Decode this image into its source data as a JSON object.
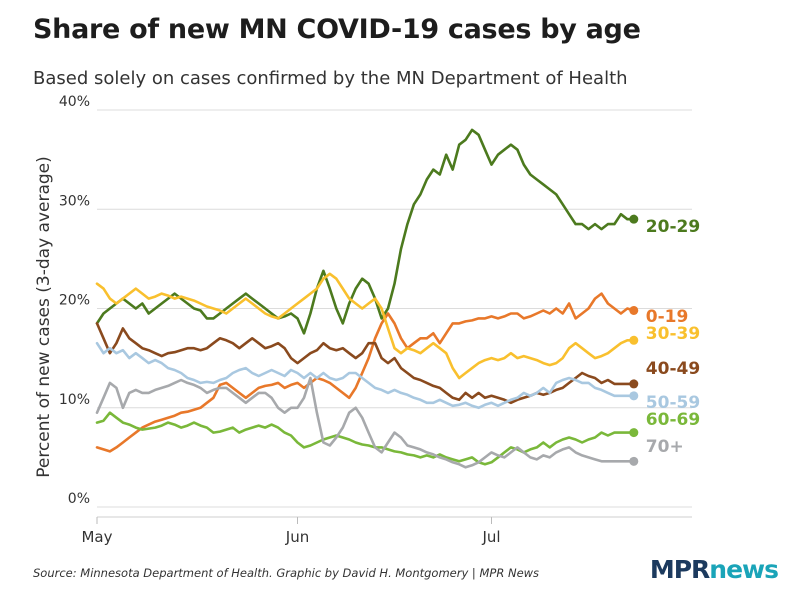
{
  "header": {
    "title": "Share of new MN COVID-19 cases by age",
    "subtitle": "Based solely on cases confirmed by the MN Department of Health"
  },
  "footer": {
    "source": "Source: Minnesota Department of Health. Graphic by David H. Montgomery | MPR News",
    "logo_mpr": "MPR",
    "logo_news": "news"
  },
  "chart_data": {
    "type": "line",
    "ylabel": "Percent of new cases (3-day average)",
    "ylim": [
      0,
      40
    ],
    "yticks": [
      0,
      10,
      20,
      30,
      40
    ],
    "ytick_labels": [
      "0%",
      "10%",
      "20%",
      "30%",
      "40%"
    ],
    "xlim": [
      0,
      92
    ],
    "xticks": [
      0,
      31,
      61
    ],
    "xtick_labels": [
      "May",
      "Jun",
      "Jul"
    ],
    "grid": "horizontal",
    "legend": "direct labels at line ends",
    "x": [
      0,
      1,
      2,
      3,
      4,
      5,
      6,
      7,
      8,
      9,
      10,
      11,
      12,
      13,
      14,
      15,
      16,
      17,
      18,
      19,
      20,
      21,
      22,
      23,
      24,
      25,
      26,
      27,
      28,
      29,
      30,
      31,
      32,
      33,
      34,
      35,
      36,
      37,
      38,
      39,
      40,
      41,
      42,
      43,
      44,
      45,
      46,
      47,
      48,
      49,
      50,
      51,
      52,
      53,
      54,
      55,
      56,
      57,
      58,
      59,
      60,
      61,
      62,
      63,
      64,
      65,
      66,
      67,
      68,
      69,
      70,
      71,
      72,
      73,
      74,
      75,
      76,
      77,
      78,
      79,
      80,
      81,
      82,
      83,
      84,
      85,
      86,
      87,
      88,
      89,
      90,
      91,
      92
    ],
    "series": [
      {
        "name": "20-29",
        "color": "#4c7a1e",
        "label_value": 29.0,
        "values": [
          18.5,
          19.5,
          20.0,
          20.5,
          21.0,
          20.5,
          20.0,
          20.5,
          19.5,
          20.0,
          20.5,
          21.0,
          21.5,
          21.0,
          20.5,
          20.0,
          19.8,
          19.0,
          19.0,
          19.5,
          20.0,
          20.5,
          21.0,
          21.5,
          21.0,
          20.5,
          20.0,
          19.5,
          19.0,
          19.2,
          19.5,
          19.0,
          17.5,
          19.5,
          22.0,
          23.8,
          22.0,
          20.0,
          18.5,
          20.5,
          22.0,
          23.0,
          22.5,
          21.0,
          19.0,
          20.0,
          22.5,
          26.0,
          28.5,
          30.5,
          31.5,
          33.0,
          34.0,
          33.5,
          35.5,
          34.0,
          36.5,
          37.0,
          38.0,
          37.5,
          36.0,
          34.5,
          35.5,
          36.0,
          36.5,
          36.0,
          34.5,
          33.5,
          33.0,
          32.5,
          32.0,
          31.5,
          30.5,
          29.5,
          28.5,
          28.5,
          28.0,
          28.5,
          28.0,
          28.5,
          28.5,
          29.5,
          29.0,
          29.0,
          29.0,
          29.0,
          29.0,
          29.0,
          29.0,
          29.0,
          29.0,
          29.0,
          29.0
        ]
      },
      {
        "name": "0-19",
        "color": "#e8782a",
        "label_value": 19.0,
        "values": [
          6.0,
          5.8,
          5.6,
          6.0,
          6.5,
          7.0,
          7.5,
          8.0,
          8.3,
          8.6,
          8.8,
          9.0,
          9.2,
          9.5,
          9.6,
          9.8,
          10.0,
          10.5,
          11.0,
          12.3,
          12.5,
          12.0,
          11.5,
          11.0,
          11.5,
          12.0,
          12.2,
          12.3,
          12.5,
          12.0,
          12.3,
          12.5,
          12.0,
          12.5,
          13.0,
          12.8,
          12.5,
          12.0,
          11.5,
          11.0,
          12.0,
          13.5,
          15.0,
          17.0,
          18.5,
          19.5,
          18.5,
          17.0,
          16.0,
          16.5,
          17.0,
          17.0,
          17.5,
          16.5,
          17.5,
          18.5,
          18.5,
          18.7,
          18.8,
          19.0,
          19.0,
          19.2,
          19.0,
          19.2,
          19.5,
          19.5,
          19.0,
          19.2,
          19.5,
          19.8,
          19.5,
          20.0,
          19.5,
          20.5,
          19.0,
          19.5,
          20.0,
          21.0,
          21.5,
          20.5,
          20.0,
          19.5,
          20.0,
          19.8,
          19.5,
          19.6,
          19.5,
          19.3,
          19.0,
          19.0,
          19.0,
          19.0,
          19.0
        ]
      },
      {
        "name": "30-39",
        "color": "#f9c02e",
        "label_value": 16.8,
        "values": [
          22.5,
          22.0,
          21.0,
          20.5,
          21.0,
          21.5,
          22.0,
          21.5,
          21.0,
          21.2,
          21.5,
          21.3,
          21.0,
          21.2,
          21.0,
          20.8,
          20.5,
          20.2,
          20.0,
          19.8,
          19.5,
          20.0,
          20.5,
          21.0,
          20.5,
          20.0,
          19.5,
          19.2,
          19.0,
          19.5,
          20.0,
          20.5,
          21.0,
          21.5,
          22.0,
          23.0,
          23.5,
          23.0,
          22.0,
          21.0,
          20.5,
          20.0,
          20.5,
          21.0,
          20.0,
          18.0,
          16.0,
          15.5,
          16.0,
          15.8,
          15.5,
          16.0,
          16.5,
          16.0,
          15.5,
          14.0,
          13.0,
          13.5,
          14.0,
          14.5,
          14.8,
          15.0,
          14.8,
          15.0,
          15.5,
          15.0,
          15.2,
          15.0,
          14.8,
          14.5,
          14.3,
          14.5,
          15.0,
          16.0,
          16.5,
          16.0,
          15.5,
          15.0,
          15.2,
          15.5,
          16.0,
          16.5,
          16.8,
          16.8,
          16.8,
          16.8,
          16.8,
          16.8,
          16.8,
          16.8,
          16.8,
          16.8,
          16.8
        ]
      },
      {
        "name": "40-49",
        "color": "#8a4a1e",
        "label_value": 12.4,
        "values": [
          18.5,
          17.0,
          15.5,
          16.5,
          18.0,
          17.0,
          16.5,
          16.0,
          15.8,
          15.5,
          15.2,
          15.5,
          15.6,
          15.8,
          16.0,
          16.0,
          15.8,
          16.0,
          16.5,
          17.0,
          16.8,
          16.5,
          16.0,
          16.5,
          17.0,
          16.5,
          16.0,
          16.2,
          16.5,
          16.0,
          15.0,
          14.5,
          15.0,
          15.5,
          15.8,
          16.5,
          16.0,
          15.8,
          16.0,
          15.5,
          15.0,
          15.5,
          16.5,
          16.5,
          15.0,
          14.5,
          15.0,
          14.0,
          13.5,
          13.0,
          12.8,
          12.5,
          12.2,
          12.0,
          11.5,
          11.0,
          10.8,
          11.5,
          11.0,
          11.5,
          11.0,
          11.2,
          11.0,
          10.8,
          10.5,
          10.8,
          11.0,
          11.2,
          11.5,
          11.3,
          11.5,
          11.8,
          12.0,
          12.5,
          13.0,
          13.5,
          13.2,
          13.0,
          12.5,
          12.8,
          12.4,
          12.4,
          12.4,
          12.4,
          12.4,
          12.4,
          12.4,
          12.4,
          12.4,
          12.4,
          12.4,
          12.4,
          12.4
        ]
      },
      {
        "name": "50-59",
        "color": "#a9c8e0",
        "label_value": 11.2,
        "values": [
          16.5,
          15.5,
          16.0,
          15.5,
          15.8,
          15.0,
          15.5,
          15.0,
          14.5,
          14.8,
          14.5,
          14.0,
          13.8,
          13.5,
          13.0,
          12.8,
          12.5,
          12.6,
          12.5,
          12.8,
          13.0,
          13.5,
          13.8,
          14.0,
          13.5,
          13.2,
          13.5,
          13.8,
          13.5,
          13.2,
          13.8,
          13.5,
          13.0,
          13.5,
          13.0,
          13.5,
          13.0,
          12.8,
          13.0,
          13.5,
          13.5,
          13.0,
          12.5,
          12.0,
          11.8,
          11.5,
          11.8,
          11.5,
          11.3,
          11.0,
          10.8,
          10.5,
          10.5,
          10.8,
          10.5,
          10.2,
          10.3,
          10.5,
          10.2,
          10.0,
          10.3,
          10.5,
          10.2,
          10.5,
          10.8,
          11.0,
          11.5,
          11.2,
          11.5,
          12.0,
          11.5,
          12.5,
          12.8,
          13.0,
          12.8,
          12.5,
          12.5,
          12.0,
          11.8,
          11.5,
          11.2,
          11.2,
          11.2,
          11.2,
          11.2,
          11.2,
          11.2,
          11.2,
          11.2,
          11.2,
          11.2,
          11.2,
          11.2
        ]
      },
      {
        "name": "60-69",
        "color": "#7ab83a",
        "label_value": 7.5,
        "values": [
          8.5,
          8.7,
          9.5,
          9.0,
          8.5,
          8.3,
          8.0,
          7.8,
          7.9,
          8.0,
          8.2,
          8.5,
          8.3,
          8.0,
          8.2,
          8.5,
          8.2,
          8.0,
          7.5,
          7.6,
          7.8,
          8.0,
          7.5,
          7.8,
          8.0,
          8.2,
          8.0,
          8.3,
          8.0,
          7.5,
          7.2,
          6.5,
          6.0,
          6.2,
          6.5,
          6.8,
          7.0,
          7.2,
          7.0,
          6.8,
          6.5,
          6.3,
          6.2,
          6.0,
          6.0,
          5.8,
          5.6,
          5.5,
          5.3,
          5.2,
          5.0,
          5.2,
          5.0,
          5.3,
          5.0,
          4.8,
          4.6,
          4.8,
          5.0,
          4.5,
          4.3,
          4.5,
          5.0,
          5.5,
          6.0,
          5.8,
          5.5,
          5.8,
          6.0,
          6.5,
          6.0,
          6.5,
          6.8,
          7.0,
          6.8,
          6.5,
          6.8,
          7.0,
          7.5,
          7.2,
          7.5,
          7.5,
          7.5,
          7.5,
          7.5,
          7.5,
          7.5,
          7.5,
          7.5,
          7.5,
          7.5,
          7.5,
          7.5
        ]
      },
      {
        "name": "70+",
        "color": "#a7a9ac",
        "label_value": 4.6,
        "values": [
          9.5,
          11.0,
          12.5,
          12.0,
          10.0,
          11.5,
          11.8,
          11.5,
          11.5,
          11.8,
          12.0,
          12.2,
          12.5,
          12.8,
          12.5,
          12.3,
          12.0,
          11.5,
          11.8,
          12.0,
          12.0,
          11.5,
          11.0,
          10.5,
          11.0,
          11.5,
          11.5,
          11.0,
          10.0,
          9.5,
          10.0,
          10.0,
          11.0,
          13.0,
          9.5,
          6.5,
          6.2,
          7.0,
          8.0,
          9.5,
          10.0,
          9.0,
          7.5,
          6.0,
          5.5,
          6.5,
          7.5,
          7.0,
          6.2,
          6.0,
          5.8,
          5.5,
          5.3,
          5.0,
          4.8,
          4.5,
          4.3,
          4.0,
          4.2,
          4.5,
          5.0,
          5.5,
          5.2,
          5.0,
          5.5,
          6.0,
          5.5,
          5.0,
          4.8,
          5.2,
          5.0,
          5.5,
          5.8,
          6.0,
          5.5,
          5.2,
          5.0,
          4.8,
          4.6,
          4.6,
          4.6,
          4.6,
          4.6,
          4.6,
          4.6,
          4.6,
          4.6,
          4.6,
          4.6,
          4.6,
          4.6,
          4.6,
          4.6
        ]
      }
    ]
  }
}
